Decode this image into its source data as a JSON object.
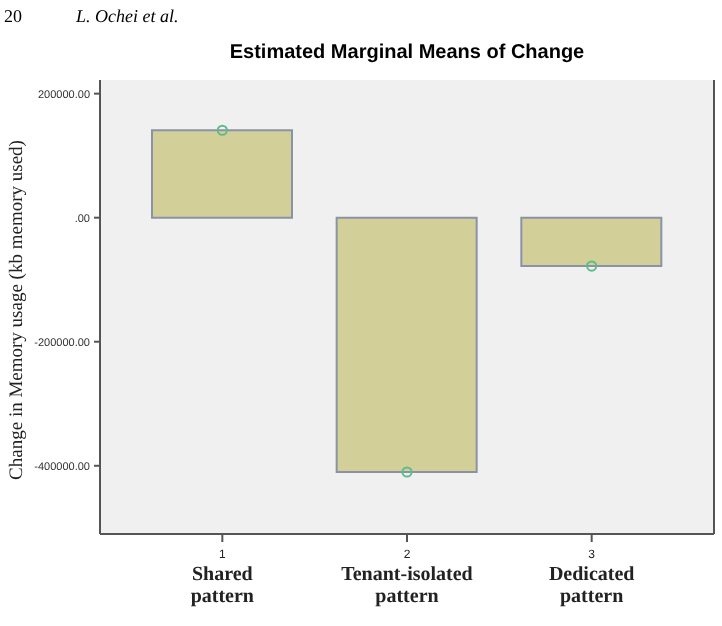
{
  "chart_data": {
    "type": "bar",
    "title": "Estimated Marginal Means of Change",
    "ylabel": "Change in Memory usage (kb memory used)",
    "categories": [
      "1\nShared\npattern",
      "2\nTenant-isolated\npattern",
      "3\nDedicated\npattern"
    ],
    "series": [
      {
        "type": "bar",
        "color": "#d3cf98",
        "values": [
          141000,
          -410000,
          -78000
        ]
      },
      {
        "type": "scatter",
        "color": "#5dbb8c",
        "x": [
          "1\nShared\npattern",
          "2\nTenant-isolated\npattern",
          "3\nDedicated\npattern"
        ],
        "values": [
          141000,
          -410000,
          -78000
        ]
      }
    ],
    "ylim": [
      -510000,
      222000
    ],
    "yticks": [
      {
        "value": -400000,
        "label": "-400000.00"
      },
      {
        "value": -200000,
        "label": "-200000.00"
      },
      {
        "value": 0,
        "label": ".00"
      },
      {
        "value": 200000,
        "label": "200000.00"
      }
    ],
    "marker": "circle",
    "annotations": [
      "20",
      "L. Ochei et al."
    ]
  }
}
